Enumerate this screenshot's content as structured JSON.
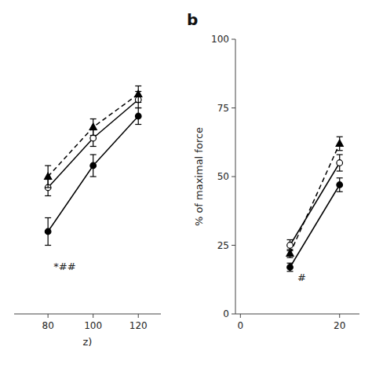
{
  "chart_data": [
    {
      "type": "line",
      "x": [
        80,
        100,
        120
      ],
      "series": [
        {
          "values": [
            70,
            82,
            91
          ],
          "errors": [
            2.5,
            2.0,
            1.5
          ],
          "marker": "circle",
          "line_style": "solid",
          "color": "black"
        },
        {
          "values": [
            78,
            87,
            94
          ],
          "errors": [
            1.5,
            1.5,
            1.5
          ],
          "marker": "open-circle",
          "line_style": "solid",
          "color": "black"
        },
        {
          "values": [
            80,
            89,
            95
          ],
          "errors": [
            2.0,
            1.5,
            1.5
          ],
          "marker": "triangle",
          "line_style": "dashed",
          "color": "black"
        }
      ],
      "xlabel": "z)",
      "xlim": [
        65,
        130
      ],
      "ylim": [
        55,
        105
      ],
      "xticks": [
        80,
        100,
        120
      ],
      "tick_labels": "x",
      "grid": false,
      "annotations": [
        {
          "text": "*##",
          "x": 82.5,
          "y": 63
        }
      ]
    },
    {
      "type": "line",
      "title": "b",
      "x": [
        10,
        20
      ],
      "series": [
        {
          "values": [
            17,
            47
          ],
          "errors": [
            1.5,
            2.5
          ],
          "marker": "circle",
          "line_style": "solid",
          "color": "black"
        },
        {
          "values": [
            25,
            55
          ],
          "errors": [
            2.0,
            3.0
          ],
          "marker": "open-circle",
          "line_style": "solid",
          "color": "black"
        },
        {
          "values": [
            22,
            62
          ],
          "errors": [
            1.5,
            2.5
          ],
          "marker": "triangle",
          "line_style": "dashed",
          "color": "black"
        }
      ],
      "ylabel": "% of maximal force",
      "xlim": [
        -1,
        24
      ],
      "ylim": [
        0,
        100
      ],
      "xticks": [
        0,
        20
      ],
      "yticks": [
        0,
        25,
        50,
        75,
        100
      ],
      "grid": false,
      "annotations": [
        {
          "text": "#",
          "x": 11.5,
          "y": 12
        }
      ]
    }
  ]
}
